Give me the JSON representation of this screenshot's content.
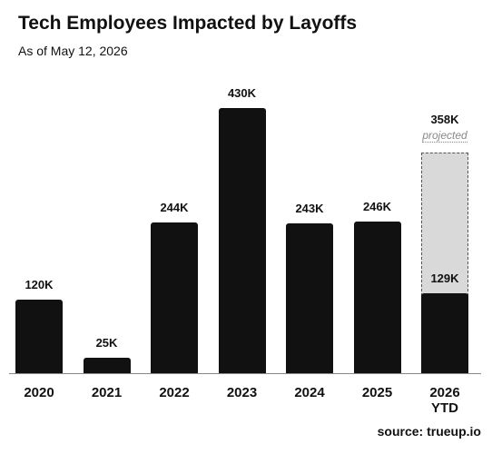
{
  "chart_data": {
    "type": "bar",
    "title": "Tech Employees Impacted by Layoffs",
    "subtitle": "As of May 12, 2026",
    "categories": [
      "2020",
      "2021",
      "2022",
      "2023",
      "2024",
      "2025",
      "2026 YTD"
    ],
    "values": [
      120,
      25,
      244,
      430,
      243,
      246,
      129
    ],
    "value_labels": [
      "120K",
      "25K",
      "244K",
      "430K",
      "243K",
      "246K",
      "129K"
    ],
    "color": "#111111",
    "projected": {
      "label": "projected",
      "color": "#d9d9d9",
      "values": [
        null,
        null,
        null,
        null,
        null,
        null,
        358
      ],
      "value_labels": [
        null,
        null,
        null,
        null,
        null,
        null,
        "358K"
      ]
    },
    "source": "source: trueup.io"
  }
}
